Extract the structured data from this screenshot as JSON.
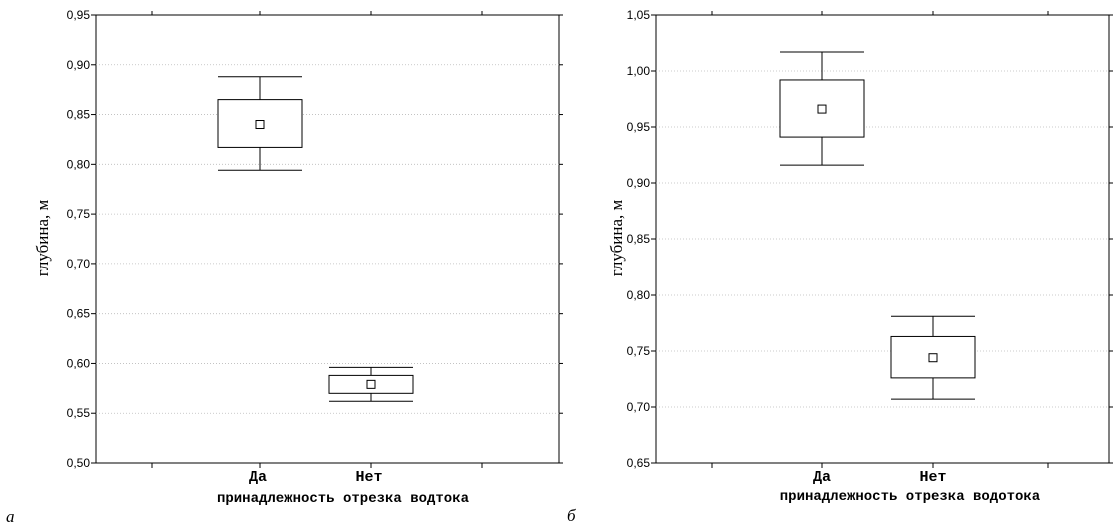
{
  "chart_data": [
    {
      "type": "box",
      "panel_label": "а",
      "ylabel": "глубина, м",
      "xlabel": "принадлежность отрезка водтока",
      "categories": [
        "Да",
        "Нет"
      ],
      "ylim": [
        0.5,
        0.95
      ],
      "yticks": [
        "0,50",
        "0,55",
        "0,60",
        "0,65",
        "0,70",
        "0,75",
        "0,80",
        "0,85",
        "0,90",
        "0,95"
      ],
      "grid": true,
      "boxes": [
        {
          "category": "Да",
          "mean": 0.84,
          "box_low": 0.817,
          "box_high": 0.865,
          "whisker_low": 0.794,
          "whisker_high": 0.888
        },
        {
          "category": "Нет",
          "mean": 0.579,
          "box_low": 0.57,
          "box_high": 0.588,
          "whisker_low": 0.562,
          "whisker_high": 0.596
        }
      ]
    },
    {
      "type": "box",
      "panel_label": "б",
      "ylabel": "глубина, м",
      "xlabel": "принадлежность отрезка водотока",
      "categories": [
        "Да",
        "Нет"
      ],
      "ylim": [
        0.65,
        1.05
      ],
      "yticks": [
        "0,65",
        "0,70",
        "0,75",
        "0,80",
        "0,85",
        "0,90",
        "0,95",
        "1,00",
        "1,05"
      ],
      "grid": true,
      "boxes": [
        {
          "category": "Да",
          "mean": 0.966,
          "box_low": 0.941,
          "box_high": 0.992,
          "whisker_low": 0.916,
          "whisker_high": 1.017
        },
        {
          "category": "Нет",
          "mean": 0.744,
          "box_low": 0.726,
          "box_high": 0.763,
          "whisker_low": 0.707,
          "whisker_high": 0.781
        }
      ]
    }
  ]
}
